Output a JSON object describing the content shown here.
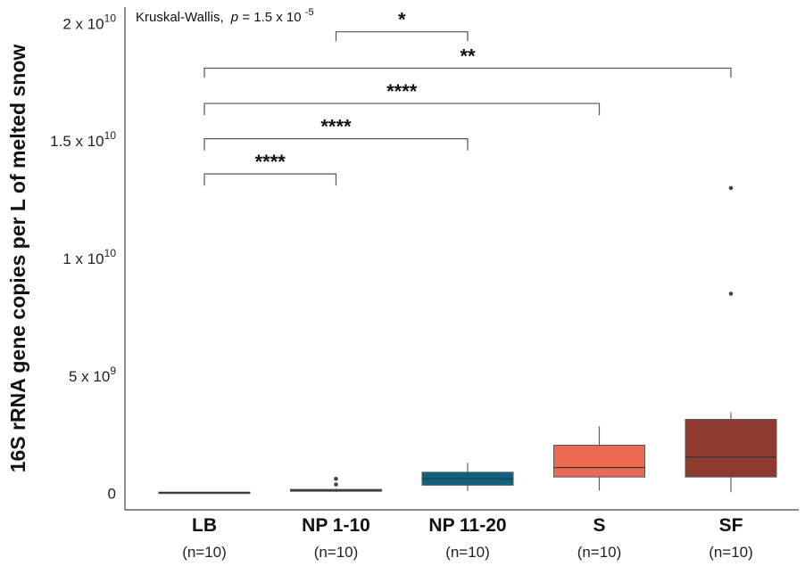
{
  "chart_data": {
    "type": "box",
    "ylabel": "16S rRNA gene copies per L of melted snow",
    "ylim": [
      -700000000,
      20700000000
    ],
    "y_ticks": [
      {
        "value": 0,
        "label": "0"
      },
      {
        "value": 5000000000,
        "mantissa": "5 x 10",
        "exp": "9"
      },
      {
        "value": 10000000000,
        "mantissa": "1 x 10",
        "exp": "10"
      },
      {
        "value": 15000000000,
        "mantissa": "1.5 x 10",
        "exp": "10"
      },
      {
        "value": 20000000000,
        "mantissa": "2 x 10",
        "exp": "10"
      }
    ],
    "annotation": {
      "test": "Kruskal-Wallis,",
      "p_symbol": "p",
      "p_value": " = 1.5 x 10",
      "p_exp": "-5"
    },
    "groups": [
      {
        "name": "LB",
        "n_label": "(n=10)",
        "color": "#3b4a5c",
        "whisker_low": 20000000,
        "q1": 30000000,
        "median": 40000000,
        "q3": 50000000,
        "whisker_high": 60000000,
        "outliers": []
      },
      {
        "name": "NP 1-10",
        "n_label": "(n=10)",
        "color": "#3c6688",
        "whisker_low": 60000000,
        "q1": 90000000,
        "median": 130000000,
        "q3": 170000000,
        "whisker_high": 200000000,
        "outliers": [
          380000000,
          620000000
        ]
      },
      {
        "name": "NP 11-20",
        "n_label": "(n=10)",
        "color": "#0d6280",
        "whisker_low": 100000000,
        "q1": 350000000,
        "median": 620000000,
        "q3": 900000000,
        "whisker_high": 1300000000,
        "outliers": []
      },
      {
        "name": "S",
        "n_label": "(n=10)",
        "color": "#ed6a52",
        "whisker_low": 120000000,
        "q1": 700000000,
        "median": 1100000000,
        "q3": 2050000000,
        "whisker_high": 2850000000,
        "outliers": []
      },
      {
        "name": "SF",
        "n_label": "(n=10)",
        "color": "#8e3a2e",
        "whisker_low": 50000000,
        "q1": 700000000,
        "median": 1550000000,
        "q3": 3150000000,
        "whisker_high": 3450000000,
        "outliers": [
          8500000000,
          13000000000
        ]
      }
    ],
    "comparisons": [
      {
        "from": 0,
        "to": 1,
        "label": "****",
        "y": 13600000000,
        "drop": 500000000
      },
      {
        "from": 0,
        "to": 2,
        "label": "****",
        "y": 15100000000,
        "drop": 500000000
      },
      {
        "from": 0,
        "to": 3,
        "label": "****",
        "y": 16600000000,
        "drop": 500000000
      },
      {
        "from": 0,
        "to": 4,
        "label": "**",
        "y": 18100000000,
        "drop": 400000000
      },
      {
        "from": 1,
        "to": 2,
        "label": "*",
        "y": 19650000000,
        "drop": 400000000
      }
    ]
  }
}
